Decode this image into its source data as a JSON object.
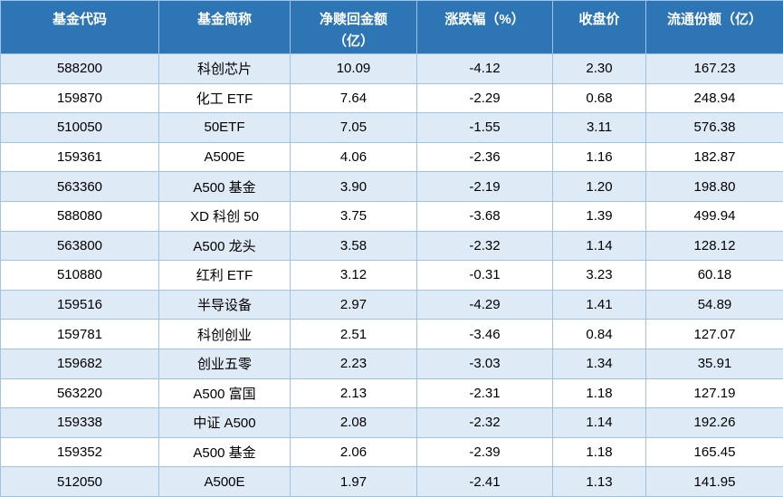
{
  "colors": {
    "header_bg": "#2E75B6",
    "header_text": "#FFFFFF",
    "row_alt_bg": "#DEEAF6",
    "row_bg": "#FFFFFF",
    "grid_border": "#9DC3E6",
    "body_text": "#000000"
  },
  "table": {
    "headers": [
      {
        "id": "fund-code",
        "line1": "基金代码",
        "line2": ""
      },
      {
        "id": "fund-name",
        "line1": "基金简称",
        "line2": ""
      },
      {
        "id": "net-redemption",
        "line1": "净赎回金额",
        "line2": "（亿）"
      },
      {
        "id": "change-percent",
        "line1": "涨跌幅（%）",
        "line2": ""
      },
      {
        "id": "closing-price",
        "line1": "收盘价",
        "line2": ""
      },
      {
        "id": "circulating-shares",
        "line1": "流通份额（亿）",
        "line2": ""
      }
    ]
  },
  "chart_data": {
    "type": "table",
    "columns": [
      "基金代码",
      "基金简称",
      "净赎回金额（亿）",
      "涨跌幅（%）",
      "收盘价",
      "流通份额（亿）"
    ],
    "rows": [
      [
        "588200",
        "科创芯片",
        "10.09",
        "-4.12",
        "2.30",
        "167.23"
      ],
      [
        "159870",
        "化工 ETF",
        "7.64",
        "-2.29",
        "0.68",
        "248.94"
      ],
      [
        "510050",
        "50ETF",
        "7.05",
        "-1.55",
        "3.11",
        "576.38"
      ],
      [
        "159361",
        "A500E",
        "4.06",
        "-2.36",
        "1.16",
        "182.87"
      ],
      [
        "563360",
        "A500 基金",
        "3.90",
        "-2.19",
        "1.20",
        "198.80"
      ],
      [
        "588080",
        "XD 科创 50",
        "3.75",
        "-3.68",
        "1.39",
        "499.94"
      ],
      [
        "563800",
        "A500 龙头",
        "3.58",
        "-2.32",
        "1.14",
        "128.12"
      ],
      [
        "510880",
        "红利 ETF",
        "3.12",
        "-0.31",
        "3.23",
        "60.18"
      ],
      [
        "159516",
        "半导设备",
        "2.97",
        "-4.29",
        "1.41",
        "54.89"
      ],
      [
        "159781",
        "科创创业",
        "2.51",
        "-3.46",
        "0.84",
        "127.07"
      ],
      [
        "159682",
        "创业五零",
        "2.23",
        "-3.03",
        "1.34",
        "35.91"
      ],
      [
        "563220",
        "A500 富国",
        "2.13",
        "-2.31",
        "1.18",
        "127.19"
      ],
      [
        "159338",
        "中证 A500",
        "2.08",
        "-2.32",
        "1.14",
        "192.26"
      ],
      [
        "159352",
        "A500 基金",
        "2.06",
        "-2.39",
        "1.18",
        "165.45"
      ],
      [
        "512050",
        "A500E",
        "1.97",
        "-2.41",
        "1.13",
        "141.95"
      ]
    ]
  }
}
